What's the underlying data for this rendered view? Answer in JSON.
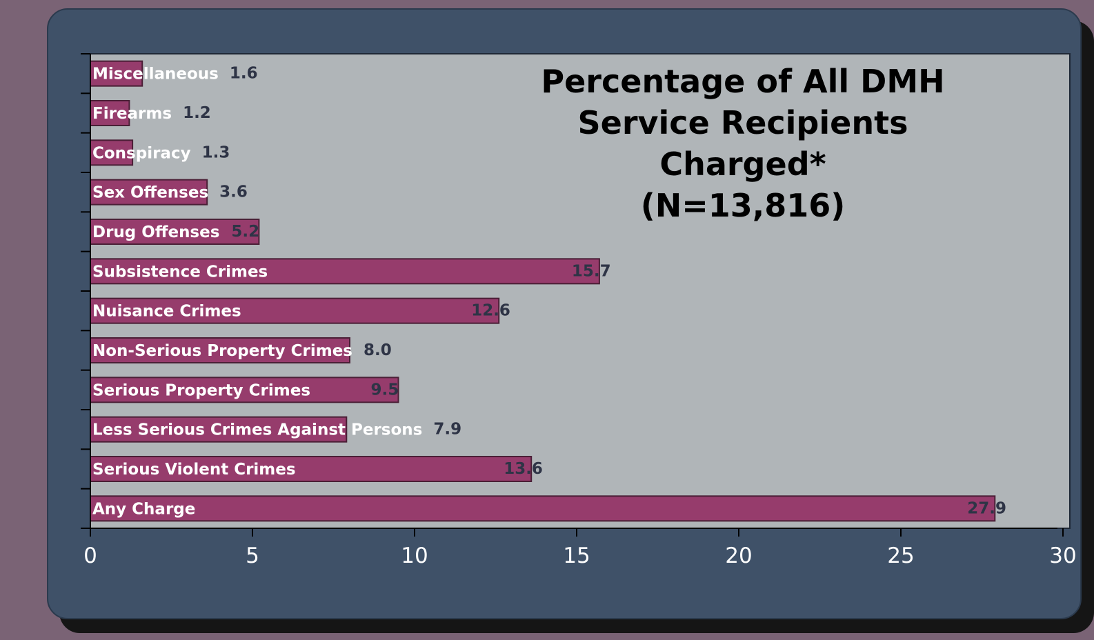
{
  "chart_data": {
    "type": "bar",
    "orientation": "horizontal",
    "title_lines": [
      "Percentage of All DMH",
      "Service Recipients",
      "Charged*",
      "(N=13,816)"
    ],
    "categories": [
      "Miscellaneous",
      "Firearms",
      "Conspiracy",
      "Sex Offenses",
      "Drug Offenses",
      "Subsistence Crimes",
      "Nuisance Crimes",
      "Non-Serious Property Crimes",
      "Serious Property Crimes",
      "Less Serious Crimes Against Persons",
      "Serious Violent Crimes",
      "Any Charge"
    ],
    "values": [
      1.6,
      1.2,
      1.3,
      3.6,
      5.2,
      15.7,
      12.6,
      8.0,
      9.5,
      7.9,
      13.6,
      27.9
    ],
    "value_labels": [
      "1.6",
      "1.2",
      "1.3",
      "3.6",
      "5.2",
      "15.7",
      "12.6",
      "8.0",
      "9.5",
      "7.9",
      "13.6",
      "27.9"
    ],
    "xlim": [
      0,
      30
    ],
    "x_ticks": [
      "0",
      "5",
      "10",
      "15",
      "20",
      "25",
      "30"
    ],
    "xlabel": "",
    "ylabel": "",
    "grid": false,
    "legend": "none",
    "colors": {
      "bar_fill": "#963c6c",
      "bar_stroke": "#4a1f36",
      "plot_background": "#b0b5b8",
      "panel_background": "#3f5168",
      "page_background": "#7a6375",
      "category_label": "#ffffff",
      "value_label": "#2e3446",
      "tick_label": "#ffffff"
    }
  }
}
